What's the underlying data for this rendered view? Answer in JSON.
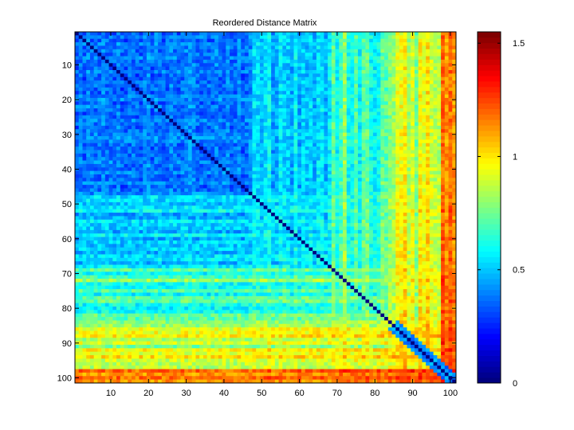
{
  "chart_data": {
    "type": "heatmap",
    "title": "Reordered Distance Matrix",
    "xlabel": "",
    "ylabel": "",
    "n": 101,
    "xlim": [
      1,
      101
    ],
    "ylim": [
      1,
      101
    ],
    "y_reversed": true,
    "x_ticks": [
      10,
      20,
      30,
      40,
      50,
      60,
      70,
      80,
      90,
      100
    ],
    "y_ticks": [
      10,
      20,
      30,
      40,
      50,
      60,
      70,
      80,
      90,
      100
    ],
    "colormap": "jet",
    "clim": [
      0,
      1.55
    ],
    "colorbar": {
      "ticks": [
        0,
        0.5,
        1,
        1.5
      ],
      "tick_labels": [
        "0",
        "0.5",
        "1",
        "1.5"
      ]
    },
    "diagonal_value": 0,
    "block_structure": [
      {
        "rows": [
          1,
          47
        ],
        "cols": [
          1,
          47
        ],
        "value": 0.35
      },
      {
        "rows": [
          48,
          68
        ],
        "cols": [
          1,
          68
        ],
        "value": 0.55
      },
      {
        "rows": [
          69,
          85
        ],
        "cols": [
          1,
          85
        ],
        "value": 0.75
      },
      {
        "rows": [
          86,
          97
        ],
        "cols": [
          1,
          97
        ],
        "value": 0.95
      },
      {
        "rows": [
          98,
          101
        ],
        "cols": [
          1,
          101
        ],
        "value": 1.35
      }
    ],
    "notes_values": "cell values approximated from color; symmetric matrix, zero diagonal"
  },
  "colors": {
    "jet_stops": [
      "#00008f",
      "#0000ff",
      "#00ffff",
      "#ffff00",
      "#ff0000",
      "#800000"
    ]
  }
}
